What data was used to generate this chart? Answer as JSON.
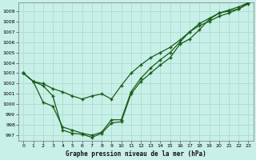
{
  "title": "Graphe pression niveau de la mer (hPa)",
  "bg_color": "#c8f0e8",
  "grid_color": "#aaddcc",
  "line_color": "#1a5c1a",
  "ylim": [
    996.5,
    1009.8
  ],
  "yticks": [
    997,
    998,
    999,
    1000,
    1001,
    1002,
    1003,
    1004,
    1005,
    1006,
    1007,
    1008,
    1009
  ],
  "xlim": [
    -0.5,
    23.5
  ],
  "xticks": [
    0,
    1,
    2,
    3,
    4,
    5,
    6,
    7,
    8,
    9,
    10,
    11,
    12,
    13,
    14,
    15,
    16,
    17,
    18,
    19,
    20,
    21,
    22,
    23
  ],
  "series1_x": [
    0,
    1,
    2,
    3,
    4,
    5,
    6,
    7,
    8,
    9,
    10,
    11,
    12,
    13,
    14,
    15,
    16,
    17,
    18,
    19,
    20,
    21,
    22,
    23
  ],
  "series1_y": [
    1003.0,
    1002.2,
    1001.8,
    1000.8,
    997.5,
    997.2,
    997.1,
    996.8,
    997.2,
    998.2,
    998.3,
    1001.0,
    1002.2,
    1003.0,
    1003.8,
    1004.5,
    1005.8,
    1006.3,
    1007.2,
    1008.2,
    1008.8,
    1009.0,
    1009.2,
    1009.7
  ],
  "series2_x": [
    0,
    1,
    2,
    3,
    4,
    5,
    6,
    7,
    8,
    9,
    10,
    11,
    12,
    13,
    14,
    15,
    16,
    17,
    18,
    19,
    20,
    21,
    22,
    23
  ],
  "series2_y": [
    1003.0,
    1002.2,
    1002.0,
    1001.5,
    1001.2,
    1000.8,
    1000.5,
    1000.8,
    1001.0,
    1000.5,
    1001.8,
    1003.0,
    1003.8,
    1004.5,
    1005.0,
    1005.5,
    1006.2,
    1007.0,
    1007.8,
    1008.3,
    1008.8,
    1009.1,
    1009.4,
    1009.8
  ],
  "series3_x": [
    0,
    1,
    2,
    3,
    4,
    5,
    6,
    7,
    8,
    9,
    10,
    11,
    12,
    13,
    14,
    15,
    16,
    17,
    18,
    19,
    20,
    21,
    22,
    23
  ],
  "series3_y": [
    1003.0,
    1002.2,
    1000.2,
    999.8,
    997.8,
    997.5,
    997.2,
    997.0,
    997.3,
    998.5,
    998.5,
    1001.2,
    1002.5,
    1003.5,
    1004.3,
    1005.0,
    1006.0,
    1007.0,
    1007.6,
    1008.0,
    1008.5,
    1008.8,
    1009.2,
    1009.8
  ]
}
